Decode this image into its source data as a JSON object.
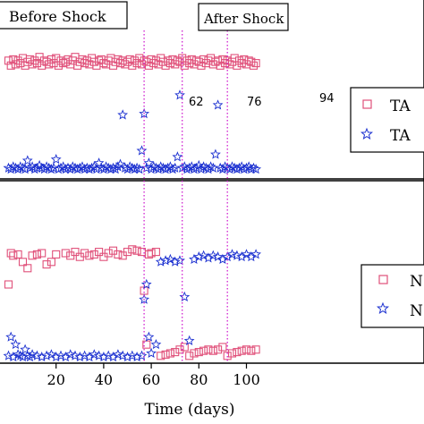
{
  "colors": {
    "series_square": "#e0507a",
    "series_star": "#1a2fd0",
    "shock_line": "#d020d0",
    "axis": "#000000",
    "box_border": "#000000"
  },
  "chart_data": [
    {
      "type": "scatter",
      "panel": "top",
      "xlim": [
        -2,
        114
      ],
      "ylim": [
        0,
        1
      ],
      "phase_labels": [
        "Before Shock",
        "After Shock"
      ],
      "markers": [
        {
          "x": 57,
          "label": "62"
        },
        {
          "x": 73,
          "label": "76"
        },
        {
          "x": 92,
          "label": "94"
        }
      ],
      "legend": [
        "TA",
        "TA"
      ],
      "series": [
        {
          "marker": "square",
          "x": [
            0,
            1,
            2,
            3,
            4,
            5,
            6,
            7,
            8,
            9,
            10,
            11,
            12,
            13,
            14,
            15,
            16,
            17,
            18,
            19,
            20,
            21,
            22,
            23,
            24,
            25,
            26,
            27,
            28,
            29,
            30,
            31,
            32,
            33,
            34,
            35,
            36,
            37,
            38,
            39,
            40,
            41,
            42,
            43,
            44,
            45,
            46,
            47,
            48,
            49,
            50,
            51,
            52,
            53,
            54,
            55,
            56,
            57,
            58,
            59,
            60,
            61,
            62,
            63,
            64,
            65,
            66,
            67,
            68,
            69,
            70,
            71,
            72,
            73,
            74,
            75,
            76,
            77,
            78,
            79,
            80,
            81,
            82,
            83,
            84,
            85,
            86,
            87,
            88,
            89,
            90,
            91,
            92,
            93,
            94,
            95,
            96,
            97,
            98,
            99,
            100,
            101,
            102,
            103,
            104
          ],
          "values": [
            0.9,
            0.86,
            0.91,
            0.87,
            0.9,
            0.88,
            0.92,
            0.86,
            0.89,
            0.91,
            0.87,
            0.9,
            0.88,
            0.93,
            0.86,
            0.9,
            0.89,
            0.87,
            0.91,
            0.88,
            0.92,
            0.86,
            0.9,
            0.88,
            0.89,
            0.91,
            0.87,
            0.9,
            0.93,
            0.86,
            0.89,
            0.91,
            0.88,
            0.9,
            0.87,
            0.92,
            0.89,
            0.86,
            0.9,
            0.91,
            0.88,
            0.87,
            0.9,
            0.92,
            0.86,
            0.89,
            0.91,
            0.88,
            0.9,
            0.87,
            0.89,
            0.91,
            0.86,
            0.9,
            0.88,
            0.92,
            0.87,
            0.9,
            0.89,
            0.86,
            0.91,
            0.88,
            0.9,
            0.87,
            0.92,
            0.89,
            0.86,
            0.9,
            0.88,
            0.91,
            0.87,
            0.9,
            0.89,
            0.92,
            0.86,
            0.9,
            0.88,
            0.91,
            0.87,
            0.9,
            0.89,
            0.86,
            0.91,
            0.88,
            0.9,
            0.92,
            0.87,
            0.89,
            0.9,
            0.86,
            0.91,
            0.88,
            0.9,
            0.87,
            0.89,
            0.92,
            0.86,
            0.9,
            0.88,
            0.91,
            0.87,
            0.9,
            0.89,
            0.86,
            0.88
          ]
        },
        {
          "marker": "star",
          "x": [
            0,
            1,
            2,
            3,
            4,
            5,
            6,
            7,
            8,
            9,
            10,
            11,
            12,
            13,
            14,
            15,
            16,
            17,
            18,
            19,
            20,
            21,
            22,
            23,
            24,
            25,
            26,
            27,
            28,
            29,
            30,
            31,
            32,
            33,
            34,
            35,
            36,
            37,
            38,
            39,
            40,
            41,
            42,
            43,
            44,
            45,
            46,
            47,
            48,
            49,
            50,
            51,
            52,
            53,
            54,
            55,
            56,
            57,
            58,
            59,
            60,
            61,
            62,
            63,
            64,
            65,
            66,
            67,
            68,
            69,
            70,
            71,
            72,
            73,
            74,
            75,
            76,
            77,
            78,
            79,
            80,
            81,
            82,
            83,
            84,
            85,
            86,
            87,
            88,
            89,
            90,
            91,
            92,
            93,
            94,
            95,
            96,
            97,
            98,
            99,
            100,
            101,
            102,
            103,
            104
          ],
          "values": [
            0.03,
            0.02,
            0.04,
            0.03,
            0.02,
            0.04,
            0.03,
            0.02,
            0.09,
            0.03,
            0.04,
            0.02,
            0.03,
            0.05,
            0.03,
            0.02,
            0.04,
            0.03,
            0.02,
            0.03,
            0.1,
            0.02,
            0.03,
            0.04,
            0.02,
            0.03,
            0.02,
            0.04,
            0.03,
            0.02,
            0.03,
            0.04,
            0.02,
            0.03,
            0.02,
            0.03,
            0.04,
            0.02,
            0.07,
            0.03,
            0.02,
            0.04,
            0.03,
            0.02,
            0.03,
            0.02,
            0.04,
            0.06,
            0.46,
            0.03,
            0.02,
            0.04,
            0.03,
            0.02,
            0.03,
            0.02,
            0.17,
            0.47,
            0.03,
            0.07,
            0.02,
            0.04,
            0.03,
            0.02,
            0.04,
            0.03,
            0.02,
            0.03,
            0.04,
            0.02,
            0.03,
            0.12,
            0.62,
            0.03,
            0.04,
            0.02,
            0.03,
            0.04,
            0.02,
            0.03,
            0.05,
            0.02,
            0.04,
            0.03,
            0.02,
            0.04,
            0.03,
            0.14,
            0.54,
            0.03,
            0.02,
            0.04,
            0.03,
            0.02,
            0.04,
            0.03,
            0.02,
            0.03,
            0.04,
            0.02,
            0.03,
            0.04,
            0.02,
            0.03,
            0.02
          ]
        }
      ]
    },
    {
      "type": "scatter",
      "panel": "bottom",
      "xlim": [
        -2,
        114
      ],
      "ylim": [
        0,
        1
      ],
      "xlabel": "Time (days)",
      "xticks": [
        20,
        40,
        60,
        80,
        100
      ],
      "legend": [
        "N",
        "N"
      ],
      "series": [
        {
          "marker": "square",
          "x": [
            0,
            1,
            2,
            4,
            6,
            8,
            10,
            12,
            14,
            16,
            18,
            20,
            24,
            26,
            28,
            30,
            32,
            34,
            36,
            38,
            40,
            42,
            44,
            46,
            48,
            50,
            52,
            54,
            56,
            57,
            58,
            59,
            60,
            62,
            64,
            66,
            68,
            70,
            72,
            74,
            76,
            78,
            80,
            82,
            84,
            86,
            88,
            90,
            92,
            94,
            96,
            98,
            100,
            102,
            104
          ],
          "values": [
            0.6,
            0.85,
            0.83,
            0.84,
            0.78,
            0.73,
            0.83,
            0.84,
            0.85,
            0.76,
            0.78,
            0.84,
            0.85,
            0.83,
            0.86,
            0.82,
            0.85,
            0.83,
            0.84,
            0.86,
            0.82,
            0.85,
            0.87,
            0.84,
            0.83,
            0.86,
            0.88,
            0.87,
            0.86,
            0.55,
            0.12,
            0.84,
            0.85,
            0.86,
            0.03,
            0.04,
            0.05,
            0.06,
            0.08,
            0.1,
            0.03,
            0.05,
            0.06,
            0.07,
            0.08,
            0.07,
            0.08,
            0.1,
            0.03,
            0.05,
            0.06,
            0.07,
            0.08,
            0.07,
            0.08
          ]
        },
        {
          "marker": "star",
          "x": [
            0,
            1,
            2,
            3,
            4,
            5,
            6,
            7,
            8,
            9,
            10,
            12,
            14,
            16,
            18,
            20,
            22,
            24,
            26,
            28,
            30,
            32,
            34,
            36,
            38,
            40,
            42,
            44,
            46,
            48,
            50,
            52,
            54,
            56,
            57,
            58,
            59,
            60,
            62,
            64,
            66,
            68,
            70,
            72,
            74,
            76,
            78,
            80,
            82,
            84,
            86,
            88,
            90,
            92,
            94,
            96,
            98,
            100,
            102,
            104
          ],
          "values": [
            0.03,
            0.18,
            0.02,
            0.12,
            0.04,
            0.03,
            0.02,
            0.08,
            0.03,
            0.02,
            0.04,
            0.03,
            0.02,
            0.03,
            0.04,
            0.02,
            0.03,
            0.02,
            0.04,
            0.03,
            0.02,
            0.03,
            0.02,
            0.04,
            0.03,
            0.02,
            0.03,
            0.02,
            0.04,
            0.03,
            0.02,
            0.03,
            0.02,
            0.03,
            0.48,
            0.6,
            0.18,
            0.05,
            0.12,
            0.78,
            0.79,
            0.8,
            0.78,
            0.79,
            0.5,
            0.15,
            0.8,
            0.82,
            0.83,
            0.81,
            0.83,
            0.82,
            0.8,
            0.82,
            0.84,
            0.83,
            0.82,
            0.84,
            0.82,
            0.84
          ]
        }
      ]
    }
  ]
}
